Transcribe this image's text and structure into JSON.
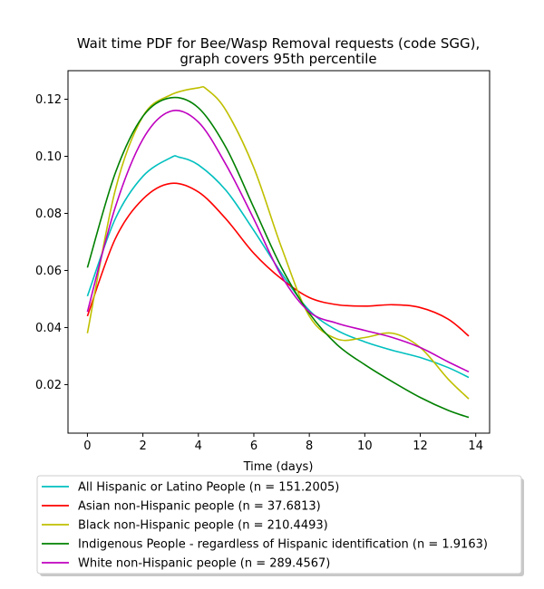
{
  "chart_data": {
    "type": "line",
    "title_lines": [
      "Wait time PDF for Bee/Wasp Removal  requests (code SGG),",
      "graph covers 95th percentile"
    ],
    "xlabel": "Time (days)",
    "ylabel": "",
    "xlim": [
      -0.7,
      14.5
    ],
    "ylim": [
      0.003,
      0.13
    ],
    "xticks": [
      0,
      2,
      4,
      6,
      8,
      10,
      12,
      14
    ],
    "yticks": [
      0.02,
      0.04,
      0.06,
      0.08,
      0.1,
      0.12
    ],
    "ytick_labels": [
      "0.02",
      "0.04",
      "0.06",
      "0.08",
      "0.10",
      "0.12"
    ],
    "grid": false,
    "legend_position": "below",
    "series": [
      {
        "name": "All Hispanic or Latino People (n = 151.2005)",
        "color": "#00bfbf",
        "points": [
          [
            0,
            0.051
          ],
          [
            1,
            0.078
          ],
          [
            2,
            0.093
          ],
          [
            3,
            0.0995
          ],
          [
            3.3,
            0.0997
          ],
          [
            4,
            0.097
          ],
          [
            5,
            0.088
          ],
          [
            6,
            0.074
          ],
          [
            7,
            0.059
          ],
          [
            8,
            0.046
          ],
          [
            9,
            0.039
          ],
          [
            10,
            0.035
          ],
          [
            11,
            0.032
          ],
          [
            12,
            0.0295
          ],
          [
            13,
            0.026
          ],
          [
            13.75,
            0.0225
          ]
        ]
      },
      {
        "name": "Asian non-Hispanic people (n = 37.6813)",
        "color": "#ff0000",
        "points": [
          [
            0,
            0.044
          ],
          [
            1,
            0.071
          ],
          [
            2,
            0.085
          ],
          [
            3,
            0.0905
          ],
          [
            4,
            0.0875
          ],
          [
            5,
            0.078
          ],
          [
            6,
            0.066
          ],
          [
            7,
            0.057
          ],
          [
            8,
            0.0505
          ],
          [
            9,
            0.048
          ],
          [
            10,
            0.0475
          ],
          [
            11,
            0.048
          ],
          [
            12,
            0.047
          ],
          [
            13,
            0.043
          ],
          [
            13.75,
            0.037
          ]
        ]
      },
      {
        "name": "Black non-Hispanic people (n = 210.4493)",
        "color": "#bfbf00",
        "points": [
          [
            0,
            0.038
          ],
          [
            1,
            0.088
          ],
          [
            2,
            0.114
          ],
          [
            3,
            0.1215
          ],
          [
            4,
            0.124
          ],
          [
            4.3,
            0.1235
          ],
          [
            5,
            0.116
          ],
          [
            6,
            0.096
          ],
          [
            7,
            0.068
          ],
          [
            8,
            0.044
          ],
          [
            9,
            0.036
          ],
          [
            10,
            0.0365
          ],
          [
            11,
            0.038
          ],
          [
            12,
            0.033
          ],
          [
            13,
            0.022
          ],
          [
            13.75,
            0.015
          ]
        ]
      },
      {
        "name": "Indigenous People - regardless of Hispanic identification (n = 1.9163)",
        "color": "#008000",
        "points": [
          [
            0,
            0.061
          ],
          [
            1,
            0.094
          ],
          [
            2,
            0.114
          ],
          [
            3,
            0.1205
          ],
          [
            4,
            0.117
          ],
          [
            5,
            0.103
          ],
          [
            6,
            0.082
          ],
          [
            7,
            0.061
          ],
          [
            8,
            0.045
          ],
          [
            9,
            0.034
          ],
          [
            10,
            0.027
          ],
          [
            11,
            0.021
          ],
          [
            12,
            0.0155
          ],
          [
            13,
            0.011
          ],
          [
            13.75,
            0.0085
          ]
        ]
      },
      {
        "name": "White non-Hispanic people (n = 289.4567)",
        "color": "#bf00bf",
        "points": [
          [
            0,
            0.0455
          ],
          [
            1,
            0.082
          ],
          [
            2,
            0.106
          ],
          [
            3,
            0.1158
          ],
          [
            4,
            0.112
          ],
          [
            5,
            0.097
          ],
          [
            6,
            0.078
          ],
          [
            7,
            0.058
          ],
          [
            8,
            0.0455
          ],
          [
            9,
            0.0415
          ],
          [
            10,
            0.039
          ],
          [
            11,
            0.0365
          ],
          [
            12,
            0.033
          ],
          [
            13,
            0.028
          ],
          [
            13.75,
            0.0245
          ]
        ]
      }
    ]
  }
}
